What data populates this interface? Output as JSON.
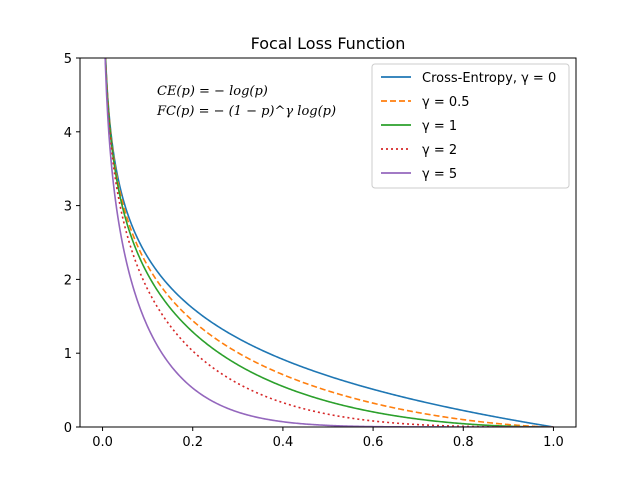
{
  "chart_data": {
    "type": "line",
    "title": "Focal Loss Function",
    "xlabel": "",
    "ylabel": "",
    "xlim": [
      -0.05,
      1.05
    ],
    "ylim": [
      0,
      5
    ],
    "xticks": [
      "0.0",
      "0.2",
      "0.4",
      "0.6",
      "0.8",
      "1.0"
    ],
    "yticks": [
      "0",
      "1",
      "2",
      "3",
      "4",
      "5"
    ],
    "grid": false,
    "legend_position": "top-right",
    "annotations": [
      "CE(p) = − log(p)",
      "FC(p) = − (1 − p)^γ log(p)"
    ],
    "x": [
      0.01,
      0.05,
      0.1,
      0.2,
      0.3,
      0.4,
      0.5,
      0.6,
      0.7,
      0.8,
      0.9,
      1.0
    ],
    "series": [
      {
        "name": "Cross-Entropy, γ = 0",
        "gamma": 0,
        "color": "#1f77b4",
        "dash": "solid",
        "values": [
          4.61,
          3.0,
          2.3,
          1.61,
          1.2,
          0.92,
          0.69,
          0.51,
          0.36,
          0.22,
          0.11,
          0.0
        ]
      },
      {
        "name": "γ = 0.5",
        "gamma": 0.5,
        "color": "#ff7f0e",
        "dash": "dashed",
        "values": [
          4.58,
          2.92,
          2.18,
          1.44,
          1.01,
          0.71,
          0.49,
          0.32,
          0.2,
          0.1,
          0.03,
          0.0
        ]
      },
      {
        "name": "γ = 1",
        "gamma": 1,
        "color": "#2ca02c",
        "dash": "solid",
        "values": [
          4.56,
          2.85,
          2.07,
          1.29,
          0.84,
          0.55,
          0.35,
          0.2,
          0.11,
          0.04,
          0.01,
          0.0
        ]
      },
      {
        "name": "γ = 2",
        "gamma": 2,
        "color": "#d62728",
        "dash": "dotted",
        "values": [
          4.51,
          2.7,
          1.87,
          1.03,
          0.59,
          0.33,
          0.17,
          0.08,
          0.03,
          0.01,
          0.0,
          0.0
        ]
      },
      {
        "name": "γ = 5",
        "gamma": 5,
        "color": "#9467bd",
        "dash": "solid",
        "values": [
          4.38,
          2.32,
          1.36,
          0.53,
          0.2,
          0.07,
          0.02,
          0.01,
          0.0,
          0.0,
          0.0,
          0.0
        ]
      }
    ]
  }
}
